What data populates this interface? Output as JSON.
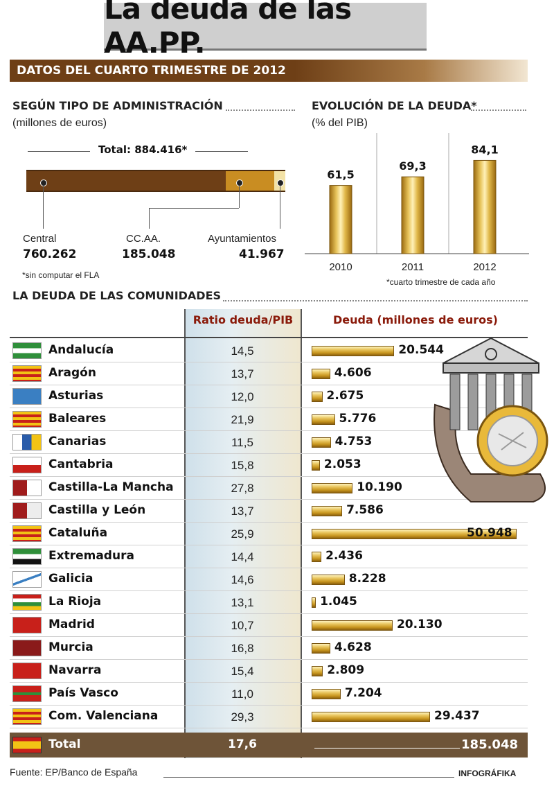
{
  "title": "La deuda de las AA.PP.",
  "band_label": "DATOS DEL CUARTO TRIMESTRE DE 2012",
  "admin_section": {
    "title": "SEGÚN TIPO DE ADMINISTRACIÓN",
    "subtitle": "(millones de euros)",
    "total_label": "Total: 884.416*",
    "note": "*sin computar el FLA",
    "items": [
      {
        "label": "Central",
        "value_text": "760.262",
        "value": 760262,
        "color": "#6e3f16"
      },
      {
        "label": "CC.AA.",
        "value_text": "185.048",
        "value": 185048,
        "color": "#c98d22"
      },
      {
        "label": "Ayuntamientos",
        "value_text": "41.967",
        "value": 41967,
        "color": "#f3e2a6"
      }
    ]
  },
  "evolution_section": {
    "title": "EVOLUCIÓN DE LA DEUDA*",
    "subtitle": "(% del PIB)",
    "note": "*cuarto trimestre de cada año"
  },
  "communities_section": {
    "title": "LA DEUDA DE LAS COMUNIDADES",
    "col_ratio": "Ratio deuda/PIB",
    "col_debt": "Deuda (millones de euros)",
    "total_label": "Total",
    "total_ratio": "17,6",
    "total_debt": "185.048"
  },
  "chart_data": [
    {
      "type": "bar",
      "title": "EVOLUCIÓN DE LA DEUDA*",
      "ylabel": "(% del PIB)",
      "categories": [
        "2010",
        "2011",
        "2012"
      ],
      "values": [
        61.5,
        69.3,
        84.1
      ],
      "value_labels": [
        "61,5",
        "69,3",
        "84,1"
      ],
      "ylim": [
        0,
        100
      ]
    },
    {
      "type": "table",
      "title": "LA DEUDA DE LAS COMUNIDADES",
      "columns": [
        "Ratio deuda/PIB",
        "Deuda (millones de euros)"
      ],
      "rows": [
        {
          "name": "Andalucía",
          "ratio": "14,5",
          "debt_text": "20.544",
          "debt": 20544
        },
        {
          "name": "Aragón",
          "ratio": "13,7",
          "debt_text": "4.606",
          "debt": 4606
        },
        {
          "name": "Asturias",
          "ratio": "12,0",
          "debt_text": "2.675",
          "debt": 2675
        },
        {
          "name": "Baleares",
          "ratio": "21,9",
          "debt_text": "5.776",
          "debt": 5776
        },
        {
          "name": "Canarias",
          "ratio": "11,5",
          "debt_text": "4.753",
          "debt": 4753
        },
        {
          "name": "Cantabria",
          "ratio": "15,8",
          "debt_text": "2.053",
          "debt": 2053
        },
        {
          "name": "Castilla-La Mancha",
          "ratio": "27,8",
          "debt_text": "10.190",
          "debt": 10190
        },
        {
          "name": "Castilla y León",
          "ratio": "13,7",
          "debt_text": "7.586",
          "debt": 7586
        },
        {
          "name": "Cataluña",
          "ratio": "25,9",
          "debt_text": "50.948",
          "debt": 50948
        },
        {
          "name": "Extremadura",
          "ratio": "14,4",
          "debt_text": "2.436",
          "debt": 2436
        },
        {
          "name": "Galicia",
          "ratio": "14,6",
          "debt_text": "8.228",
          "debt": 8228
        },
        {
          "name": "La Rioja",
          "ratio": "13,1",
          "debt_text": "1.045",
          "debt": 1045
        },
        {
          "name": "Madrid",
          "ratio": "10,7",
          "debt_text": "20.130",
          "debt": 20130
        },
        {
          "name": "Murcia",
          "ratio": "16,8",
          "debt_text": "4.628",
          "debt": 4628
        },
        {
          "name": "Navarra",
          "ratio": "15,4",
          "debt_text": "2.809",
          "debt": 2809
        },
        {
          "name": "País Vasco",
          "ratio": "11,0",
          "debt_text": "7.204",
          "debt": 7204
        },
        {
          "name": "Com. Valenciana",
          "ratio": "29,3",
          "debt_text": "29.437",
          "debt": 29437
        }
      ]
    }
  ],
  "footer": {
    "source": "Fuente: EP/Banco de España",
    "credit": "INFOGRÁFIKA"
  }
}
